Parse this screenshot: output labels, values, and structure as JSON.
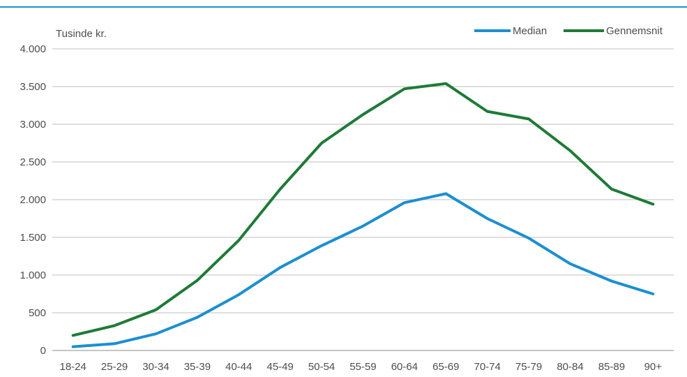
{
  "chart_data": {
    "type": "line",
    "title": "",
    "ylabel": "Tusinde kr.",
    "xlabel": "",
    "categories": [
      "18-24",
      "25-29",
      "30-34",
      "35-39",
      "40-44",
      "45-49",
      "50-54",
      "55-59",
      "60-64",
      "65-69",
      "70-74",
      "75-79",
      "80-84",
      "85-89",
      "90+"
    ],
    "series": [
      {
        "name": "Median",
        "color": "#1b8fd0",
        "values": [
          50,
          90,
          220,
          440,
          740,
          1100,
          1390,
          1650,
          1960,
          2080,
          1750,
          1490,
          1150,
          920,
          750
        ]
      },
      {
        "name": "Gennemsnit",
        "color": "#1e7a36",
        "values": [
          200,
          330,
          540,
          930,
          1460,
          2140,
          2750,
          3130,
          3470,
          3540,
          3170,
          3070,
          2650,
          2140,
          1940
        ]
      }
    ],
    "ylim": [
      0,
      4000
    ],
    "yticks": [
      0,
      500,
      1000,
      1500,
      2000,
      2500,
      3000,
      3500,
      4000
    ],
    "ytick_labels": [
      "0",
      "500",
      "1.000",
      "1.500",
      "2.000",
      "2.500",
      "3.000",
      "3.500",
      "4.000"
    ],
    "grid": true,
    "legend_position": "top-right",
    "colors": {
      "top_rule": "#1b8fd0",
      "grid": "#bfbfbf",
      "axis": "#8c8c8c",
      "text": "#4d4d4d"
    }
  }
}
